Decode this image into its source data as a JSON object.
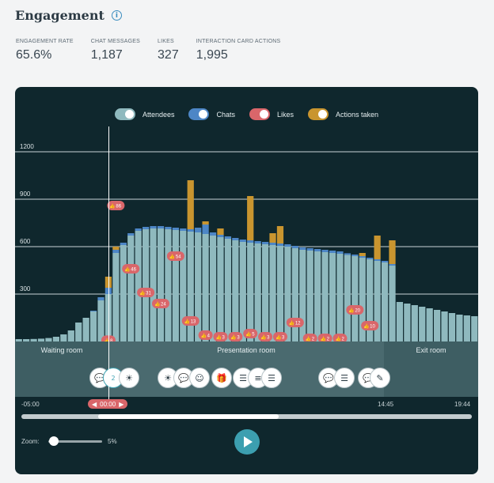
{
  "header": {
    "title": "Engagement",
    "info_icon": "info-icon"
  },
  "stats": [
    {
      "label": "ENGAGEMENT RATE",
      "value": "65.6%"
    },
    {
      "label": "CHAT MESSAGES",
      "value": "1,187"
    },
    {
      "label": "LIKES",
      "value": "327"
    },
    {
      "label": "INTERACTION CARD ACTIONS",
      "value": "1,995"
    }
  ],
  "legend": [
    {
      "label": "Attendees",
      "color": "#8fb9be"
    },
    {
      "label": "Chats",
      "color": "#4d86c6"
    },
    {
      "label": "Likes",
      "color": "#d9666a"
    },
    {
      "label": "Actions taken",
      "color": "#c9952f"
    }
  ],
  "chart_data": {
    "type": "bar",
    "ylim": [
      0,
      1350
    ],
    "yticks": [
      "1200",
      "900",
      "600",
      "300"
    ],
    "attendees": [
      15,
      15,
      16,
      18,
      22,
      30,
      45,
      70,
      120,
      150,
      190,
      260,
      300,
      560,
      610,
      670,
      700,
      710,
      715,
      715,
      710,
      705,
      700,
      695,
      690,
      680,
      670,
      660,
      650,
      640,
      630,
      625,
      620,
      615,
      610,
      605,
      600,
      590,
      580,
      575,
      570,
      565,
      560,
      555,
      548,
      540,
      530,
      520,
      510,
      500,
      480,
      250,
      240,
      230,
      220,
      210,
      200,
      190,
      180,
      170,
      165,
      160
    ],
    "chats": [
      0,
      0,
      0,
      0,
      0,
      0,
      0,
      0,
      0,
      0,
      5,
      20,
      40,
      20,
      15,
      15,
      15,
      15,
      15,
      15,
      15,
      15,
      15,
      15,
      30,
      60,
      20,
      15,
      15,
      15,
      15,
      15,
      15,
      15,
      15,
      15,
      15,
      15,
      15,
      15,
      15,
      15,
      15,
      15,
      10,
      10,
      10,
      10,
      10,
      10,
      10,
      0,
      0,
      0,
      0,
      0,
      0,
      0,
      0,
      0,
      0,
      0
    ],
    "actions": [
      0,
      0,
      0,
      0,
      0,
      0,
      0,
      0,
      0,
      0,
      0,
      0,
      70,
      20,
      0,
      0,
      0,
      0,
      0,
      0,
      0,
      0,
      0,
      310,
      0,
      20,
      0,
      40,
      0,
      0,
      0,
      280,
      0,
      0,
      60,
      110,
      0,
      0,
      0,
      0,
      0,
      0,
      0,
      0,
      0,
      0,
      20,
      0,
      150,
      0,
      150,
      0,
      0,
      0,
      0,
      0,
      0,
      0,
      0,
      0,
      0,
      0
    ],
    "likes": [
      {
        "i": 12,
        "v": 8,
        "label": "8"
      },
      {
        "i": 13,
        "v": 860,
        "label": "86"
      },
      {
        "i": 15,
        "v": 460,
        "label": "46"
      },
      {
        "i": 17,
        "v": 310,
        "label": "31"
      },
      {
        "i": 19,
        "v": 240,
        "label": "24"
      },
      {
        "i": 21,
        "v": 540,
        "label": "54"
      },
      {
        "i": 23,
        "v": 130,
        "label": "13"
      },
      {
        "i": 25,
        "v": 40,
        "label": "4"
      },
      {
        "i": 27,
        "v": 30,
        "label": "3"
      },
      {
        "i": 29,
        "v": 30,
        "label": "3"
      },
      {
        "i": 31,
        "v": 50,
        "label": "5"
      },
      {
        "i": 33,
        "v": 30,
        "label": "3"
      },
      {
        "i": 35,
        "v": 30,
        "label": "3"
      },
      {
        "i": 37,
        "v": 120,
        "label": "12"
      },
      {
        "i": 39,
        "v": 20,
        "label": "2"
      },
      {
        "i": 41,
        "v": 20,
        "label": "2"
      },
      {
        "i": 43,
        "v": 20,
        "label": "2"
      },
      {
        "i": 45,
        "v": 200,
        "label": "20"
      },
      {
        "i": 47,
        "v": 100,
        "label": "10"
      }
    ]
  },
  "zones": [
    {
      "label": "Waiting room"
    },
    {
      "label": "Presentation room"
    },
    {
      "label": "Exit room"
    }
  ],
  "timeline": {
    "start": "-05:00",
    "current": "00:00",
    "mark": "14:45",
    "end": "19:44",
    "zoom_label": "Zoom:",
    "zoom_value": "5%",
    "active_count": "2"
  }
}
